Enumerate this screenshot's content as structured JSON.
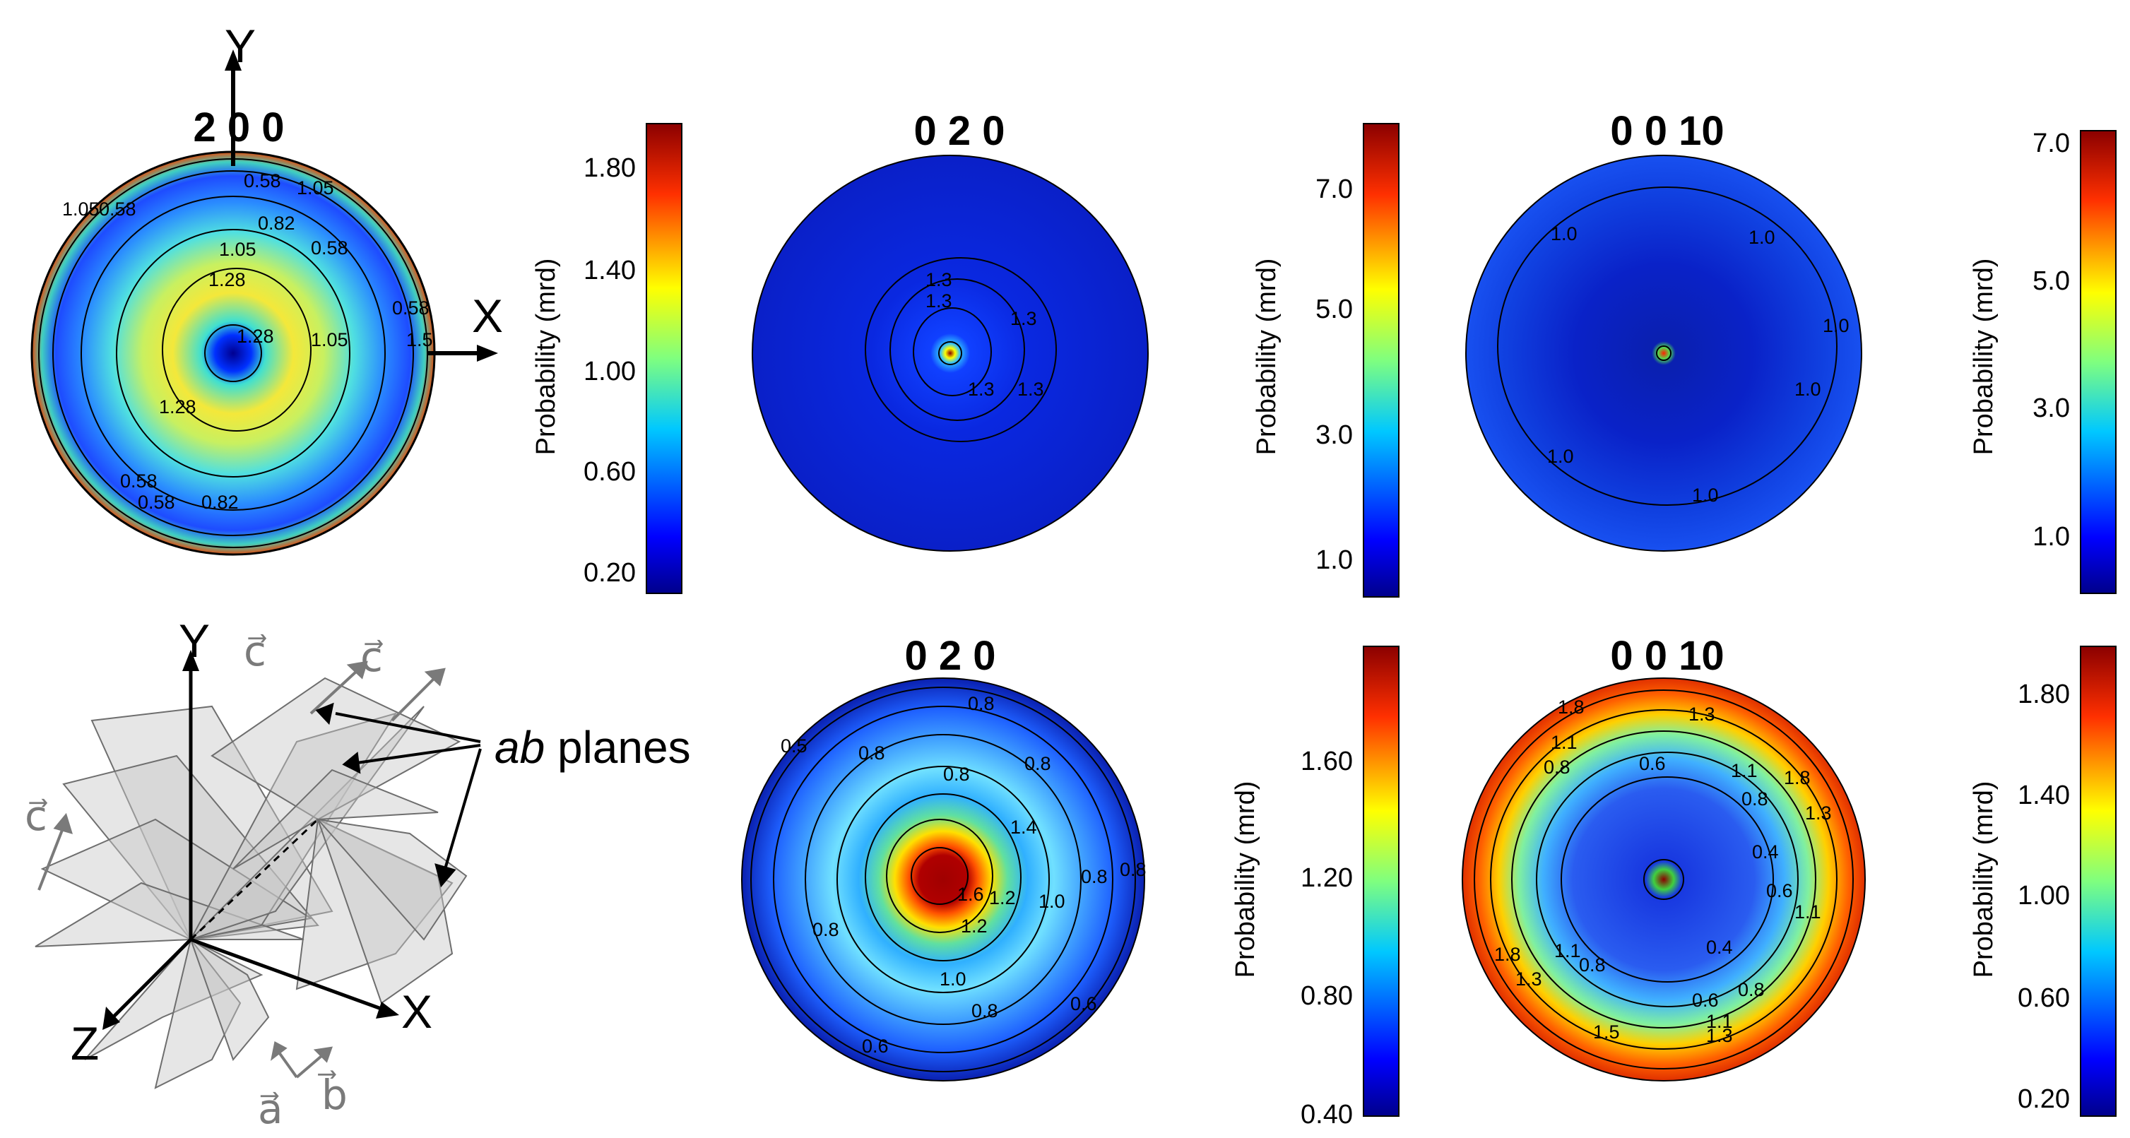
{
  "panels": [
    {
      "id": "top-200",
      "title": "2 0 0",
      "contour_labels": [
        "0.58",
        "1.05",
        "1.05",
        "0.58",
        "0.82",
        "1.05",
        "0.58",
        "1.28",
        "1.28",
        "1.05",
        "0.58",
        "1.5",
        "1.28",
        "0.58",
        "0.58",
        "0.82"
      ]
    },
    {
      "id": "top-020",
      "title": "0 2 0",
      "contour_labels": [
        "1.3",
        "1.3",
        "1.3",
        "1.3",
        "1.3"
      ]
    },
    {
      "id": "top-0010",
      "title": "0 0 10",
      "contour_labels": [
        "1.0",
        "1.0",
        "1.0",
        "1.0",
        "1.0",
        "1.0"
      ]
    },
    {
      "id": "bottom-020",
      "title": "0 2 0",
      "contour_labels": [
        "0.8",
        "0.5",
        "0.8",
        "0.8",
        "0.8",
        "1.4",
        "1.6",
        "1.2",
        "1.0",
        "0.8",
        "0.8",
        "0.8",
        "1.0",
        "0.8",
        "0.6",
        "0.6",
        "1.2"
      ]
    },
    {
      "id": "bottom-0010",
      "title": "0 0 10",
      "contour_labels": [
        "1.8",
        "1.3",
        "1.1",
        "0.8",
        "0.6",
        "1.1",
        "1.8",
        "1.3",
        "0.8",
        "0.4",
        "0.6",
        "1.1",
        "0.4",
        "0.8",
        "1.1",
        "0.8",
        "1.8",
        "1.3",
        "1.5",
        "0.6",
        "1.1",
        "1.3"
      ]
    }
  ],
  "colorbars": [
    {
      "id": "cb1",
      "label": "Probability (mrd)",
      "ticks": [
        "1.80",
        "1.40",
        "1.00",
        "0.60",
        "0.20"
      ]
    },
    {
      "id": "cb2",
      "label": "Probability (mrd)",
      "ticks": [
        "7.0",
        "5.0",
        "3.0",
        "1.0"
      ]
    },
    {
      "id": "cb3",
      "label": "Probability (mrd)",
      "ticks": [
        "7.0",
        "5.0",
        "3.0",
        "1.0"
      ]
    },
    {
      "id": "cb4",
      "label": "Probability (mrd)",
      "ticks": [
        "1.60",
        "1.20",
        "0.80",
        "0.40"
      ]
    },
    {
      "id": "cb5",
      "label": "Probability (mrd)",
      "ticks": [
        "1.80",
        "1.40",
        "1.00",
        "0.60",
        "0.20"
      ]
    }
  ],
  "axes": {
    "top_y": "Y",
    "top_x": "X",
    "bottom_y": "Y",
    "bottom_x": "X",
    "bottom_z": "Z"
  },
  "schematic": {
    "c_vector": "c⃗",
    "a_vector": "a⃗",
    "b_vector": "b⃗",
    "ab_italic": "ab",
    "planes_word": " planes"
  },
  "colors": {
    "jet_low": "#00008b",
    "jet_mid": "#00c8ff",
    "jet_green": "#7fff7f",
    "jet_high": "#ffff00",
    "jet_top": "#8b0000",
    "vector_gray": "#7a7a7a"
  }
}
